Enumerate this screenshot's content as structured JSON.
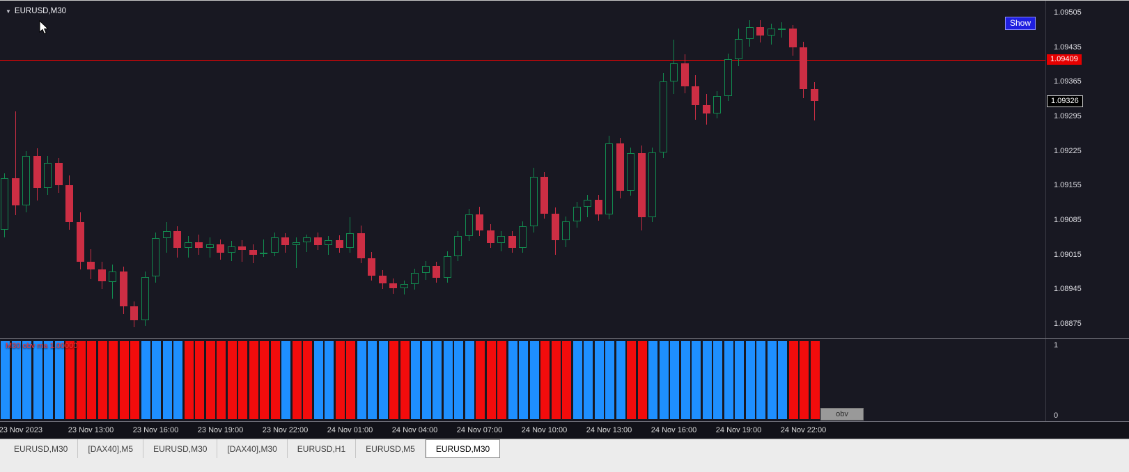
{
  "chart": {
    "symbol": "EURUSD,M30",
    "show_button": "Show",
    "ask_line": {
      "price": 1.09409,
      "tag": "1.09409"
    },
    "bid_tag": {
      "price": 1.09326,
      "label": "1.09326"
    },
    "price_axis_labels": [
      "1.09505",
      "1.09435",
      "1.09365",
      "1.09295",
      "1.09225",
      "1.09155",
      "1.09085",
      "1.09015",
      "1.08945",
      "1.08875"
    ],
    "colors": {
      "background": "#181822",
      "bull": "#128a4f",
      "bear": "#cc2e44",
      "ask_line": "#ff0000",
      "ask_tag_bg": "#e60000",
      "bid_tag_bg": "#000000"
    }
  },
  "indicator": {
    "label": "M30 obv ma 1.00000",
    "label_color": "#ff3434",
    "badge": "obv",
    "scale_top": "1",
    "scale_bottom": "0",
    "bar_pattern": "bbbbbbrrrrrrrbbbbrrrrrrrrrbrrbbrrbbbrrbbbbbbrrrbbbrrrbbbbbrrbbbbbbbbbbbbbrrr",
    "colors": {
      "b": "#1e8fff",
      "r": "#f20c0c"
    }
  },
  "time_axis": {
    "labels": [
      {
        "text": "23 Nov 2023",
        "index": 1.5
      },
      {
        "text": "23 Nov 13:00",
        "index": 8
      },
      {
        "text": "23 Nov 16:00",
        "index": 14
      },
      {
        "text": "23 Nov 19:00",
        "index": 20
      },
      {
        "text": "23 Nov 22:00",
        "index": 26
      },
      {
        "text": "24 Nov 01:00",
        "index": 32
      },
      {
        "text": "24 Nov 04:00",
        "index": 38
      },
      {
        "text": "24 Nov 07:00",
        "index": 44
      },
      {
        "text": "24 Nov 10:00",
        "index": 50
      },
      {
        "text": "24 Nov 13:00",
        "index": 56
      },
      {
        "text": "24 Nov 16:00",
        "index": 62
      },
      {
        "text": "24 Nov 19:00",
        "index": 68
      },
      {
        "text": "24 Nov 22:00",
        "index": 74
      }
    ]
  },
  "tabs": [
    "EURUSD,M30",
    "[DAX40],M5",
    "EURUSD,M30",
    "[DAX40],M30",
    "EURUSD,H1",
    "EURUSD,M5",
    "EURUSD,M30"
  ],
  "active_tab_index": 6,
  "chart_data": {
    "type": "candlestick",
    "title": "EURUSD,M30",
    "ylim": [
      1.08848,
      1.09529
    ],
    "ohlc": [
      [
        1.09065,
        1.0918,
        1.0905,
        1.0917
      ],
      [
        1.0917,
        1.09305,
        1.09095,
        1.09115
      ],
      [
        1.09115,
        1.09225,
        1.091,
        1.09215
      ],
      [
        1.09215,
        1.0923,
        1.09125,
        1.0915
      ],
      [
        1.0915,
        1.09215,
        1.09135,
        1.092
      ],
      [
        1.092,
        1.0921,
        1.0914,
        1.09155
      ],
      [
        1.09155,
        1.09175,
        1.09065,
        1.0908
      ],
      [
        1.0908,
        1.091,
        1.08985,
        1.09
      ],
      [
        1.09,
        1.09025,
        1.08965,
        1.08985
      ],
      [
        1.08985,
        1.09,
        1.08945,
        1.0896
      ],
      [
        1.0896,
        1.08995,
        1.08925,
        1.0898
      ],
      [
        1.0898,
        1.0899,
        1.08895,
        1.0891
      ],
      [
        1.0891,
        1.0892,
        1.08868,
        1.08882
      ],
      [
        1.08882,
        1.0898,
        1.0887,
        1.0897
      ],
      [
        1.0897,
        1.0906,
        1.08958,
        1.09048
      ],
      [
        1.09048,
        1.0908,
        1.09018,
        1.09062
      ],
      [
        1.09062,
        1.09072,
        1.09008,
        1.09028
      ],
      [
        1.09028,
        1.09052,
        1.09008,
        1.0904
      ],
      [
        1.0904,
        1.09056,
        1.09014,
        1.09028
      ],
      [
        1.09028,
        1.0905,
        1.09008,
        1.09036
      ],
      [
        1.09036,
        1.09046,
        1.09004,
        1.09018
      ],
      [
        1.09018,
        1.09042,
        1.09002,
        1.09032
      ],
      [
        1.09032,
        1.09044,
        1.09,
        1.09024
      ],
      [
        1.09024,
        1.09036,
        1.08998,
        1.09014
      ],
      [
        1.09018,
        1.09046,
        1.0901,
        1.09018
      ],
      [
        1.09018,
        1.0906,
        1.09012,
        1.0905
      ],
      [
        1.0905,
        1.09058,
        1.09018,
        1.09034
      ],
      [
        1.09034,
        1.0905,
        1.08988,
        1.0904
      ],
      [
        1.0904,
        1.09056,
        1.0902,
        1.0905
      ],
      [
        1.0905,
        1.0906,
        1.09024,
        1.09034
      ],
      [
        1.09034,
        1.09052,
        1.09014,
        1.09044
      ],
      [
        1.09044,
        1.09054,
        1.09018,
        1.09028
      ],
      [
        1.09028,
        1.0909,
        1.09018,
        1.09058
      ],
      [
        1.09058,
        1.09074,
        1.08998,
        1.09008
      ],
      [
        1.09008,
        1.0902,
        1.08962,
        1.08972
      ],
      [
        1.08972,
        1.08984,
        1.08946,
        1.08956
      ],
      [
        1.08956,
        1.08966,
        1.08936,
        1.08946
      ],
      [
        1.08946,
        1.08962,
        1.08934,
        1.08955
      ],
      [
        1.08955,
        1.08986,
        1.08944,
        1.08978
      ],
      [
        1.08978,
        1.09002,
        1.08964,
        1.08992
      ],
      [
        1.08992,
        1.09,
        1.08958,
        1.08968
      ],
      [
        1.08968,
        1.09022,
        1.08958,
        1.09012
      ],
      [
        1.09012,
        1.09062,
        1.09002,
        1.09052
      ],
      [
        1.09052,
        1.09108,
        1.09042,
        1.09096
      ],
      [
        1.09096,
        1.09112,
        1.09052,
        1.09064
      ],
      [
        1.09064,
        1.09076,
        1.09028,
        1.09038
      ],
      [
        1.09038,
        1.09062,
        1.09022,
        1.09052
      ],
      [
        1.09052,
        1.09062,
        1.09018,
        1.09028
      ],
      [
        1.09028,
        1.09082,
        1.09018,
        1.09072
      ],
      [
        1.09072,
        1.0919,
        1.0906,
        1.09172
      ],
      [
        1.09172,
        1.09182,
        1.09088,
        1.09098
      ],
      [
        1.09098,
        1.0911,
        1.09015,
        1.09044
      ],
      [
        1.09044,
        1.09092,
        1.0903,
        1.09082
      ],
      [
        1.09082,
        1.09122,
        1.0907,
        1.09112
      ],
      [
        1.09112,
        1.09136,
        1.0909,
        1.09126
      ],
      [
        1.09126,
        1.09136,
        1.09084,
        1.09096
      ],
      [
        1.09096,
        1.09256,
        1.09086,
        1.0924
      ],
      [
        1.0924,
        1.09252,
        1.09128,
        1.09144
      ],
      [
        1.09144,
        1.09232,
        1.09134,
        1.0922
      ],
      [
        1.0922,
        1.09236,
        1.09064,
        1.0909
      ],
      [
        1.0909,
        1.09232,
        1.0908,
        1.09222
      ],
      [
        1.09222,
        1.09382,
        1.0921,
        1.09366
      ],
      [
        1.09366,
        1.0945,
        1.0934,
        1.09402
      ],
      [
        1.09402,
        1.0942,
        1.09342,
        1.09356
      ],
      [
        1.09356,
        1.09378,
        1.09288,
        1.09318
      ],
      [
        1.09318,
        1.0934,
        1.09278,
        1.093
      ],
      [
        1.093,
        1.09346,
        1.0929,
        1.09336
      ],
      [
        1.09336,
        1.09422,
        1.09326,
        1.0941
      ],
      [
        1.0941,
        1.09472,
        1.09396,
        1.09452
      ],
      [
        1.09452,
        1.0949,
        1.09436,
        1.09476
      ],
      [
        1.09476,
        1.0949,
        1.09444,
        1.09458
      ],
      [
        1.09458,
        1.09482,
        1.0944,
        1.09472
      ],
      [
        1.09472,
        1.09486,
        1.09454,
        1.09472
      ],
      [
        1.09472,
        1.0948,
        1.09418,
        1.09434
      ],
      [
        1.09434,
        1.09446,
        1.09332,
        1.0935
      ],
      [
        1.0935,
        1.09364,
        1.09286,
        1.09326
      ]
    ]
  }
}
